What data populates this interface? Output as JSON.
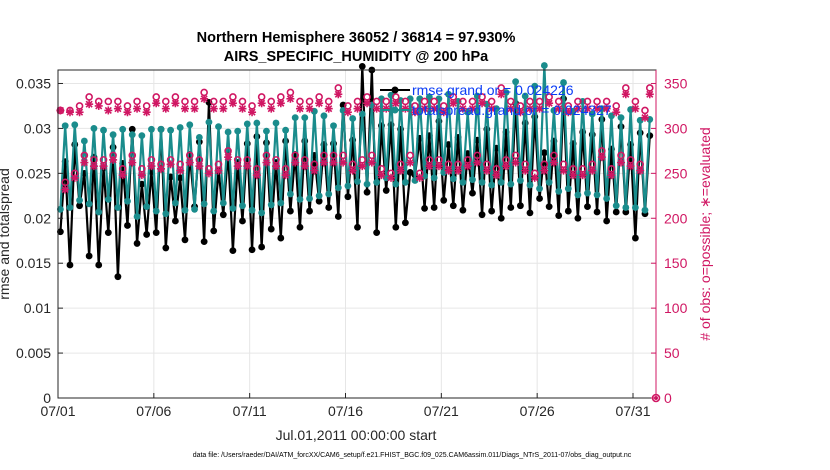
{
  "chart_data": {
    "type": "line",
    "title": "Northern Hemisphere 36052 / 36814 = 97.930%",
    "subtitle": "AIRS_SPECIFIC_HUMIDITY @ 200 hPa",
    "xlabel": "Jul.01,2011 00:00:00 start",
    "ylabel": "rmse and totalspread",
    "ylabel_right": "# of obs: o=possible; ∗=evaluated",
    "x_ticks": [
      "07/01",
      "07/06",
      "07/11",
      "07/16",
      "07/21",
      "07/26",
      "07/31"
    ],
    "x_tick_days": [
      0,
      5,
      10,
      15,
      20,
      25,
      30
    ],
    "xlim": [
      0,
      31.2
    ],
    "ylim": [
      0,
      0.0365
    ],
    "y_ticks": [
      "0",
      "0.005",
      "0.01",
      "0.015",
      "0.02",
      "0.025",
      "0.03",
      "0.035"
    ],
    "y_tick_values": [
      0,
      0.005,
      0.01,
      0.015,
      0.02,
      0.025,
      0.03,
      0.035
    ],
    "ylim_right": [
      0,
      365
    ],
    "y_ticks_right": [
      "0",
      "50",
      "100",
      "150",
      "200",
      "250",
      "300",
      "350"
    ],
    "y_tick_values_right": [
      0,
      50,
      100,
      150,
      200,
      250,
      300,
      350
    ],
    "legend": [
      {
        "label": "rmse.grand.or = 0.024226",
        "color": "#000000"
      },
      {
        "label": "totalspread.grand.or = 0.024327",
        "color": "#1a8c8c"
      }
    ],
    "footnote": "data file: /Users/raeder/DAI/ATM_forcXX/CAM6_setup/f.e21.FHIST_BGC.f09_025.CAM6assim.011/Diags_NTrS_2011-07/obs_diag_output.nc",
    "series": [
      {
        "name": "rmse",
        "color": "#000000",
        "marker": "circle",
        "axis": "left",
        "values": [
          0.0185,
          0.0263,
          0.0148,
          0.0282,
          0.0214,
          0.025,
          0.0158,
          0.0268,
          0.0148,
          0.0256,
          0.0184,
          0.0279,
          0.0135,
          0.0261,
          0.0192,
          0.0299,
          0.0172,
          0.0238,
          0.0182,
          0.0252,
          0.0184,
          0.0299,
          0.0167,
          0.0246,
          0.0197,
          0.0245,
          0.0176,
          0.0271,
          0.0213,
          0.0285,
          0.0174,
          0.0329,
          0.0186,
          0.0253,
          0.0204,
          0.0274,
          0.0164,
          0.0262,
          0.0197,
          0.0283,
          0.0165,
          0.0291,
          0.0168,
          0.0284,
          0.0188,
          0.0262,
          0.0178,
          0.0286,
          0.0208,
          0.0271,
          0.019,
          0.0286,
          0.0208,
          0.027,
          0.0219,
          0.0282,
          0.0212,
          0.0283,
          0.0202,
          0.0326,
          0.0224,
          0.0287,
          0.019,
          0.0369,
          0.0229,
          0.0365,
          0.0184,
          0.0303,
          0.0231,
          0.0304,
          0.019,
          0.0299,
          0.0195,
          0.0251,
          0.0248,
          0.0289,
          0.0211,
          0.0292,
          0.0212,
          0.0308,
          0.022,
          0.0282,
          0.0214,
          0.029,
          0.0209,
          0.0272,
          0.0228,
          0.0287,
          0.0204,
          0.0299,
          0.0208,
          0.0278,
          0.02,
          0.0296,
          0.0212,
          0.0328,
          0.0214,
          0.0306,
          0.0206,
          0.0313,
          0.0222,
          0.0273,
          0.0213,
          0.0286,
          0.0203,
          0.0333,
          0.0208,
          0.0283,
          0.02,
          0.0296,
          0.0213,
          0.0293,
          0.0207,
          0.031,
          0.0197,
          0.0277,
          0.0207,
          0.0302,
          0.0207,
          0.0282,
          0.0178,
          0.0295,
          0.0205,
          0.0292
        ]
      },
      {
        "name": "totalspread",
        "color": "#1a8c8c",
        "marker": "circle",
        "axis": "left",
        "values": [
          0.021,
          0.0303,
          0.0212,
          0.0304,
          0.022,
          0.0286,
          0.0216,
          0.03,
          0.0207,
          0.0298,
          0.0221,
          0.0293,
          0.0212,
          0.0299,
          0.0219,
          0.0293,
          0.0202,
          0.0292,
          0.0213,
          0.0299,
          0.0208,
          0.0299,
          0.0205,
          0.0298,
          0.0217,
          0.0301,
          0.0209,
          0.0304,
          0.021,
          0.029,
          0.0216,
          0.0307,
          0.0208,
          0.0302,
          0.0217,
          0.0296,
          0.0211,
          0.0297,
          0.0214,
          0.0305,
          0.0209,
          0.0306,
          0.0206,
          0.0297,
          0.0215,
          0.0306,
          0.0217,
          0.0298,
          0.0227,
          0.0312,
          0.0221,
          0.0312,
          0.0222,
          0.0319,
          0.0225,
          0.0314,
          0.0227,
          0.0303,
          0.0234,
          0.032,
          0.0236,
          0.0311,
          0.0241,
          0.0316,
          0.0238,
          0.0326,
          0.024,
          0.0333,
          0.0245,
          0.0337,
          0.0238,
          0.0331,
          0.024,
          0.0333,
          0.0242,
          0.0333,
          0.0247,
          0.0335,
          0.0245,
          0.0333,
          0.0251,
          0.0338,
          0.0244,
          0.033,
          0.024,
          0.0318,
          0.0243,
          0.0336,
          0.024,
          0.0327,
          0.0237,
          0.0322,
          0.024,
          0.034,
          0.0238,
          0.0352,
          0.0242,
          0.0336,
          0.0237,
          0.0347,
          0.0233,
          0.037,
          0.024,
          0.032,
          0.023,
          0.0351,
          0.0233,
          0.0319,
          0.0226,
          0.033,
          0.0228,
          0.0316,
          0.0226,
          0.0322,
          0.0222,
          0.0314,
          0.0214,
          0.0312,
          0.0212,
          0.0321,
          0.0212,
          0.0309,
          0.0209,
          0.031
        ]
      },
      {
        "name": "obs possible",
        "color": "#d01763",
        "marker": "o",
        "axis": "right",
        "values": [
          320,
          240,
          320,
          250,
          325,
          270,
          335,
          265,
          330,
          265,
          330,
          270,
          330,
          255,
          325,
          270,
          330,
          255,
          325,
          265,
          335,
          260,
          330,
          265,
          335,
          260,
          330,
          270,
          330,
          265,
          340,
          255,
          330,
          260,
          330,
          275,
          335,
          265,
          330,
          265,
          325,
          255,
          335,
          270,
          330,
          265,
          335,
          255,
          340,
          270,
          330,
          265,
          330,
          260,
          335,
          270,
          330,
          270,
          345,
          270,
          325,
          260,
          330,
          265,
          335,
          270,
          330,
          255,
          330,
          250,
          335,
          260,
          330,
          270,
          325,
          250,
          330,
          265,
          330,
          265,
          325,
          260,
          335,
          260,
          330,
          265,
          330,
          270,
          335,
          260,
          330,
          255,
          345,
          265,
          330,
          270,
          325,
          260,
          330,
          250,
          330,
          260,
          335,
          270,
          330,
          260,
          325,
          255,
          330,
          255,
          330,
          260,
          330,
          275,
          330,
          255,
          325,
          270,
          345,
          265,
          330,
          260,
          320,
          345
        ]
      },
      {
        "name": "obs evaluated",
        "color": "#d01763",
        "marker": "star",
        "axis": "right",
        "values": [
          320,
          232,
          318,
          245,
          318,
          262,
          327,
          258,
          325,
          258,
          320,
          265,
          322,
          248,
          318,
          262,
          322,
          248,
          318,
          258,
          328,
          255,
          322,
          260,
          328,
          253,
          322,
          262,
          322,
          258,
          333,
          250,
          322,
          253,
          322,
          268,
          328,
          258,
          322,
          258,
          318,
          248,
          328,
          262,
          322,
          258,
          328,
          248,
          333,
          262,
          322,
          258,
          322,
          253,
          328,
          262,
          322,
          262,
          338,
          262,
          318,
          253,
          322,
          258,
          328,
          262,
          322,
          248,
          322,
          245,
          328,
          253,
          322,
          262,
          318,
          245,
          322,
          258,
          322,
          258,
          318,
          253,
          328,
          253,
          322,
          258,
          322,
          262,
          328,
          253,
          322,
          248,
          338,
          258,
          322,
          262,
          318,
          253,
          322,
          245,
          322,
          253,
          328,
          262,
          322,
          253,
          318,
          248,
          322,
          248,
          322,
          253,
          322,
          268,
          322,
          248,
          318,
          262,
          338,
          258,
          322,
          253,
          312,
          338
        ]
      }
    ]
  }
}
